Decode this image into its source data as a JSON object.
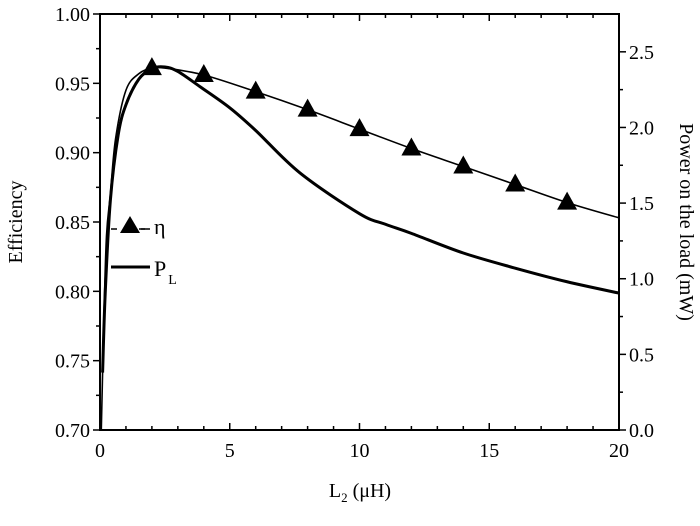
{
  "chart_data": {
    "type": "line",
    "xlabel": {
      "main": "L",
      "sub": "2",
      "unit": " (μH)"
    },
    "ylabel_left": "Efficiency",
    "ylabel_right": "Power on the load (mW)",
    "xlim": [
      0,
      20
    ],
    "ylim_left": [
      0.7,
      1.0
    ],
    "ylim_right": [
      0.0,
      2.75
    ],
    "x_ticks": [
      "0",
      "5",
      "10",
      "15",
      "20"
    ],
    "x_tick_values": [
      0,
      5,
      10,
      15,
      20
    ],
    "y_left_ticks": [
      "0.70",
      "0.75",
      "0.80",
      "0.85",
      "0.90",
      "0.95",
      "1.00"
    ],
    "y_left_tick_values": [
      0.7,
      0.75,
      0.8,
      0.85,
      0.9,
      0.95,
      1.0
    ],
    "y_right_ticks": [
      "0.0",
      "0.5",
      "1.0",
      "1.5",
      "2.0",
      "2.5"
    ],
    "y_right_tick_values": [
      0.0,
      0.5,
      1.0,
      1.5,
      2.0,
      2.5
    ],
    "grid": false,
    "legend_placement": "center-left",
    "series": [
      {
        "name": "η",
        "axis": "left",
        "marker": "triangle",
        "line": "thin",
        "x": [
          0.05,
          0.15,
          0.25,
          0.4,
          0.6,
          1.0,
          1.5,
          2.0,
          2.5,
          4,
          6,
          8,
          10,
          12,
          14,
          16,
          18,
          20
        ],
        "y": [
          0.7,
          0.78,
          0.84,
          0.87,
          0.91,
          0.945,
          0.957,
          0.961,
          0.961,
          0.956,
          0.944,
          0.931,
          0.917,
          0.903,
          0.89,
          0.877,
          0.864,
          0.853
        ],
        "marker_x": [
          2,
          4,
          6,
          8,
          10,
          12,
          14,
          16,
          18
        ],
        "marker_y": [
          0.961,
          0.956,
          0.944,
          0.931,
          0.917,
          0.903,
          0.89,
          0.877,
          0.864
        ]
      },
      {
        "name": "P",
        "name_sub": "L",
        "axis": "right",
        "line": "thick",
        "x": [
          0.1,
          0.2,
          0.4,
          0.7,
          1.0,
          1.5,
          2.0,
          2.5,
          3.0,
          3.85,
          5,
          6,
          7.7,
          10,
          11,
          12,
          14,
          16,
          18,
          20
        ],
        "y": [
          0.38,
          0.9,
          1.52,
          1.95,
          2.15,
          2.32,
          2.39,
          2.4,
          2.37,
          2.27,
          2.13,
          1.98,
          1.7,
          1.43,
          1.36,
          1.3,
          1.17,
          1.07,
          0.98,
          0.905
        ]
      }
    ]
  }
}
